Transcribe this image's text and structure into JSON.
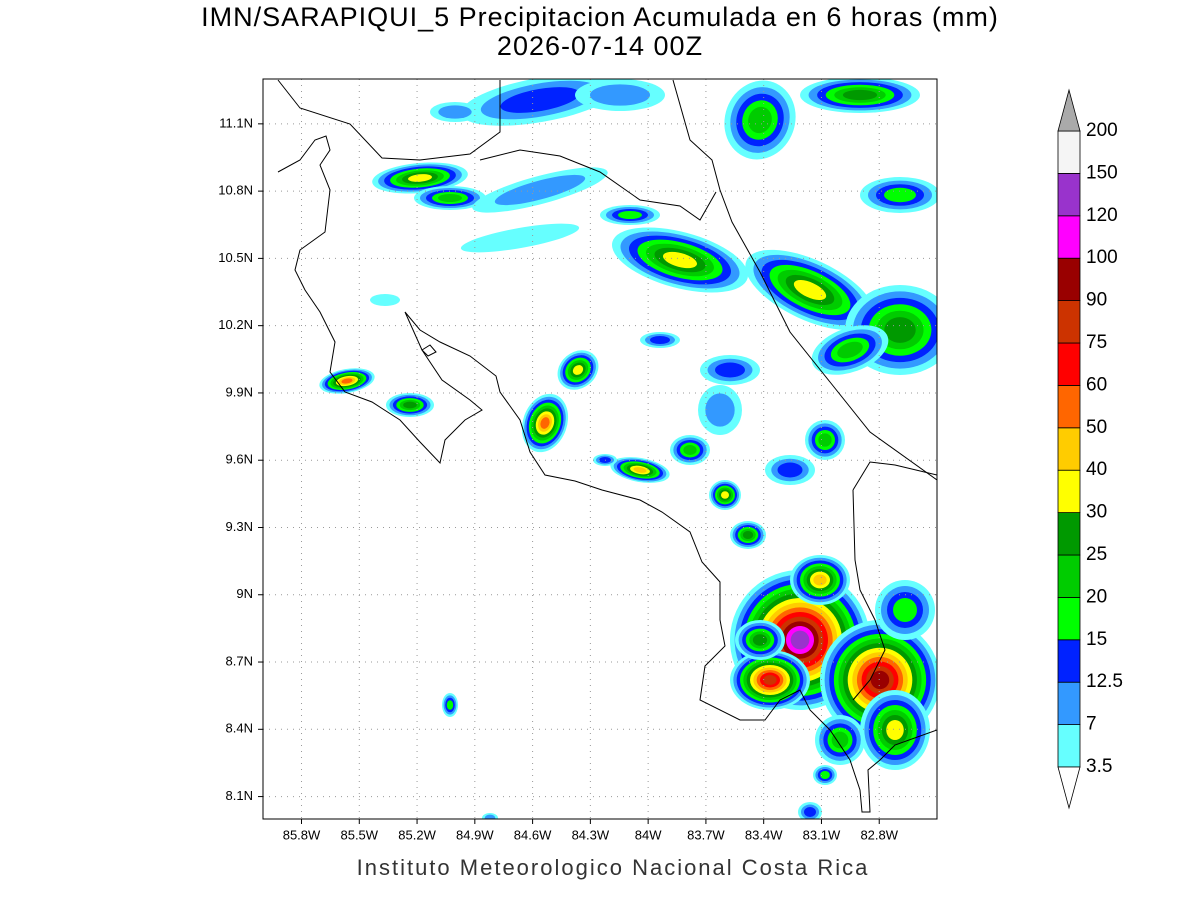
{
  "header": {
    "title": "IMN/SARAPIQUI_5 Precipitacion Acumulada en 6 horas (mm)",
    "subtitle": "2026-07-14 00Z"
  },
  "map": {
    "lonlim": [
      -86.0,
      -82.5
    ],
    "latlim": [
      8.0,
      11.3
    ],
    "lonticks": [
      {
        "value": -85.8,
        "label": "85.8W"
      },
      {
        "value": -85.5,
        "label": "85.5W"
      },
      {
        "value": -85.2,
        "label": "85.2W"
      },
      {
        "value": -84.9,
        "label": "84.9W"
      },
      {
        "value": -84.6,
        "label": "84.6W"
      },
      {
        "value": -84.3,
        "label": "84.3W"
      },
      {
        "value": -84.0,
        "label": "84W"
      },
      {
        "value": -83.7,
        "label": "83.7W"
      },
      {
        "value": -83.4,
        "label": "83.4W"
      },
      {
        "value": -83.1,
        "label": "83.1W"
      },
      {
        "value": -82.8,
        "label": "82.8W"
      }
    ],
    "latticks": [
      {
        "value": 11.1,
        "label": "11.1N"
      },
      {
        "value": 10.8,
        "label": "10.8N"
      },
      {
        "value": 10.5,
        "label": "10.5N"
      },
      {
        "value": 10.2,
        "label": "10.2N"
      },
      {
        "value": 9.9,
        "label": "9.9N"
      },
      {
        "value": 9.6,
        "label": "9.6N"
      },
      {
        "value": 9.3,
        "label": "9.3N"
      },
      {
        "value": 9.0,
        "label": "9N"
      },
      {
        "value": 8.7,
        "label": "8.7N"
      },
      {
        "value": 8.4,
        "label": "8.4N"
      },
      {
        "value": 8.1,
        "label": "8.1N"
      }
    ],
    "grid": true
  },
  "colorbar": {
    "levels": [
      3.5,
      7,
      12.5,
      15,
      20,
      25,
      30,
      40,
      50,
      60,
      75,
      90,
      100,
      120,
      150,
      200
    ],
    "colors": [
      "#66ffff",
      "#3399ff",
      "#0022ff",
      "#00ff00",
      "#00cc00",
      "#009900",
      "#ffff00",
      "#ffcc00",
      "#ff6600",
      "#ff0000",
      "#cc3300",
      "#990000",
      "#ff00ff",
      "#9933cc",
      "#f5f5f5"
    ],
    "under_color": "#ffffff",
    "over_color": "#aaaaaa"
  },
  "footer": "Instituto Meteorologico Nacional Costa Rica"
}
